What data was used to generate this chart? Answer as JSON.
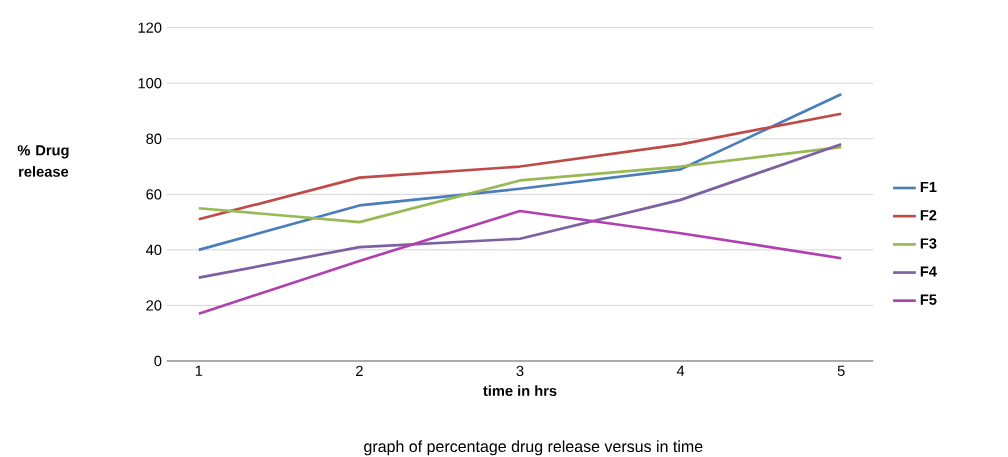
{
  "chart_data": {
    "type": "line",
    "xlabel": "time in hrs",
    "ylabel": "% Drug release",
    "x": [
      1,
      2,
      3,
      4,
      5
    ],
    "xlim": [
      0.8,
      5.2
    ],
    "xticks": [
      1,
      2,
      3,
      4,
      5
    ],
    "ylim": [
      0,
      120
    ],
    "yticks": [
      0,
      20,
      40,
      60,
      80,
      100,
      120
    ],
    "grid": "y",
    "legend": "right",
    "marker": "none",
    "series": [
      {
        "name": "F1",
        "color": "#4a7ebb",
        "values": [
          40,
          56,
          62,
          69,
          96
        ]
      },
      {
        "name": "F2",
        "color": "#be4b48",
        "values": [
          51,
          66,
          70,
          78,
          89
        ]
      },
      {
        "name": "F3",
        "color": "#98b954",
        "values": [
          55,
          50,
          65,
          70,
          77
        ]
      },
      {
        "name": "F4",
        "color": "#7d60a0",
        "values": [
          30,
          41,
          44,
          58,
          78
        ]
      },
      {
        "name": "F5",
        "color": "#b040b0",
        "values": [
          17,
          36,
          54,
          46,
          37
        ]
      }
    ],
    "annotations": [
      "graph of percentage drug release versus in time"
    ]
  }
}
